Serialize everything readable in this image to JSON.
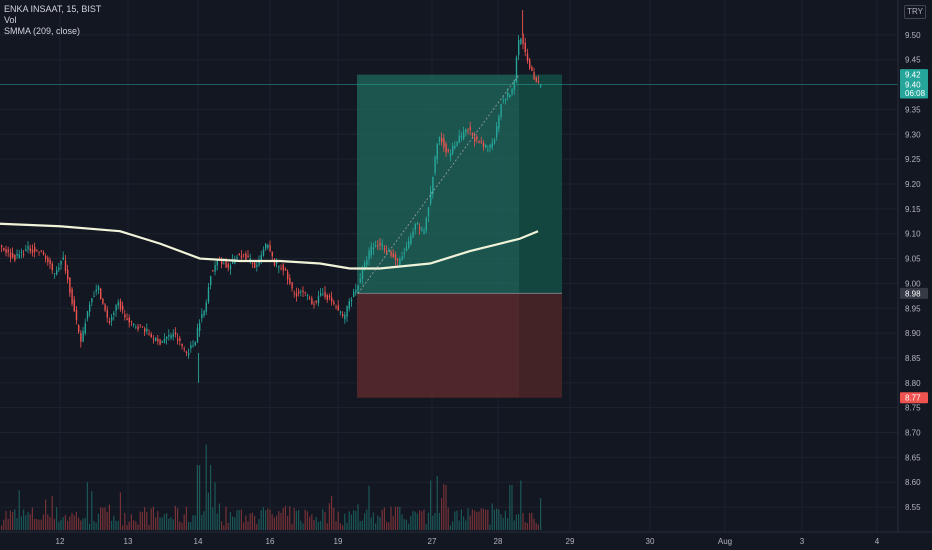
{
  "legend": {
    "symbol": "ENKA INSAAT, 15, BIST",
    "vol": "Vol",
    "smma": "SMMA (209, close)"
  },
  "currency": "TRY",
  "colors": {
    "background": "#131722",
    "up": "#26a69a",
    "down": "#ef5350",
    "smma": "#f0f3d8",
    "profit_zone": "#1f6b5e",
    "loss_zone": "#5a2a2d"
  },
  "chart_data": {
    "type": "candlestick",
    "x_tick_labels": [
      "12",
      "13",
      "14",
      "16",
      "19",
      "27",
      "28",
      "29",
      "30",
      "Aug",
      "3",
      "4"
    ],
    "y_tick_labels": [
      "9.50",
      "9.45",
      "9.35",
      "9.30",
      "9.25",
      "9.20",
      "9.15",
      "9.10",
      "9.05",
      "9.00",
      "8.95",
      "8.90",
      "8.85",
      "8.80",
      "8.75",
      "8.70",
      "8.65",
      "8.60",
      "8.55"
    ],
    "ylim": [
      8.52,
      9.55
    ],
    "price_tags": [
      {
        "label": "9.42",
        "value": 9.42,
        "color": "#26a69a"
      },
      {
        "label": "9.40",
        "value": 9.4,
        "color": "#26a69a"
      },
      {
        "label": "06:08",
        "value": 9.383,
        "color": "#26a69a"
      },
      {
        "label": "8.98",
        "value": 8.98,
        "color": "#363a45"
      },
      {
        "label": "8.77",
        "value": 8.77,
        "color": "#ef5350"
      }
    ],
    "position": {
      "entry": 8.98,
      "target": 9.42,
      "stop": 8.77
    },
    "current_price": 9.4,
    "smma_anchors": [
      [
        0,
        9.12
      ],
      [
        60,
        9.115
      ],
      [
        120,
        9.105
      ],
      [
        160,
        9.08
      ],
      [
        200,
        9.05
      ],
      [
        240,
        9.045
      ],
      [
        280,
        9.045
      ],
      [
        320,
        9.04
      ],
      [
        350,
        9.03
      ],
      [
        380,
        9.03
      ],
      [
        430,
        9.04
      ],
      [
        470,
        9.065
      ],
      [
        500,
        9.08
      ],
      [
        520,
        9.09
      ],
      [
        538,
        9.105
      ]
    ],
    "price_anchors": [
      [
        0,
        9.08
      ],
      [
        15,
        9.05
      ],
      [
        30,
        9.07
      ],
      [
        45,
        9.06
      ],
      [
        55,
        9.02
      ],
      [
        65,
        9.05
      ],
      [
        75,
        8.95
      ],
      [
        82,
        8.88
      ],
      [
        92,
        8.97
      ],
      [
        100,
        8.99
      ],
      [
        110,
        8.92
      ],
      [
        120,
        8.96
      ],
      [
        130,
        8.92
      ],
      [
        145,
        8.91
      ],
      [
        160,
        8.88
      ],
      [
        175,
        8.9
      ],
      [
        188,
        8.86
      ],
      [
        196,
        8.88
      ],
      [
        200,
        8.92
      ],
      [
        207,
        8.95
      ],
      [
        212,
        9.02
      ],
      [
        220,
        9.05
      ],
      [
        230,
        9.03
      ],
      [
        240,
        9.06
      ],
      [
        250,
        9.05
      ],
      [
        258,
        9.03
      ],
      [
        268,
        9.08
      ],
      [
        276,
        9.04
      ],
      [
        285,
        9.03
      ],
      [
        295,
        8.98
      ],
      [
        305,
        8.98
      ],
      [
        315,
        8.96
      ],
      [
        325,
        8.98
      ],
      [
        335,
        8.96
      ],
      [
        345,
        8.93
      ],
      [
        352,
        8.97
      ],
      [
        358,
        8.99
      ],
      [
        365,
        9.03
      ],
      [
        372,
        9.07
      ],
      [
        382,
        9.08
      ],
      [
        392,
        9.06
      ],
      [
        400,
        9.04
      ],
      [
        410,
        9.08
      ],
      [
        418,
        9.12
      ],
      [
        425,
        9.1
      ],
      [
        432,
        9.18
      ],
      [
        440,
        9.3
      ],
      [
        450,
        9.26
      ],
      [
        460,
        9.29
      ],
      [
        470,
        9.31
      ],
      [
        480,
        9.28
      ],
      [
        490,
        9.27
      ],
      [
        497,
        9.3
      ],
      [
        503,
        9.37
      ],
      [
        510,
        9.38
      ],
      [
        515,
        9.39
      ],
      [
        519,
        9.48
      ],
      [
        522,
        9.5
      ],
      [
        528,
        9.45
      ],
      [
        533,
        9.43
      ],
      [
        538,
        9.4
      ]
    ],
    "volume_spikes": [
      [
        198,
        0.72
      ],
      [
        205,
        0.95
      ],
      [
        210,
        0.72
      ],
      [
        430,
        0.55
      ],
      [
        437,
        0.6
      ],
      [
        445,
        0.5
      ],
      [
        510,
        0.5
      ],
      [
        520,
        0.55
      ]
    ]
  }
}
